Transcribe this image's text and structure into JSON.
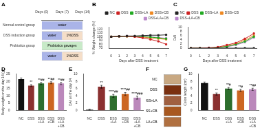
{
  "chart_data": [
    {
      "title": "A",
      "type": "timeline",
      "orientation": "horizontal",
      "stacked": true,
      "categories": [
        "Normal control group",
        "DSS induction group",
        "Probiotics group",
        null
      ],
      "series": [
        {
          "name": "water",
          "color": "#aab4e8",
          "values": [
            14,
            7,
            null,
            7
          ]
        },
        {
          "name": "1%DSS",
          "color": "#f5dec8",
          "values": [
            null,
            7,
            null,
            7
          ]
        },
        {
          "name": "Probiotics gavages",
          "color": "#c8eac8",
          "values": [
            null,
            null,
            14,
            null
          ]
        }
      ],
      "xlim": [
        0,
        14
      ],
      "xticks": [
        {
          "value": 0,
          "label": "Days (0)"
        },
        {
          "value": 7,
          "label": "Days (7)"
        },
        {
          "value": 14,
          "label": "Days (14)"
        }
      ],
      "grid": false
    },
    {
      "title": "B",
      "type": "line",
      "marker": "square",
      "x": [
        0,
        1,
        2,
        3,
        4,
        5,
        6,
        7
      ],
      "series": [
        {
          "name": "NC",
          "color": "#222222",
          "values": [
            100,
            101,
            102,
            102,
            103,
            104,
            104,
            105
          ]
        },
        {
          "name": "DSS",
          "color": "#cc2222",
          "values": [
            100,
            101,
            101,
            100,
            97,
            93,
            88,
            80
          ]
        },
        {
          "name": "DSS+LA",
          "color": "#22aa22",
          "values": [
            100,
            101,
            101,
            101,
            100,
            99,
            97,
            95
          ]
        },
        {
          "name": "DSS+CB",
          "color": "#ee8822",
          "values": [
            100,
            101,
            101,
            100,
            99,
            97,
            95,
            93
          ]
        },
        {
          "name": "DSS+LA+CB",
          "color": "#bb88cc",
          "values": [
            100,
            101,
            102,
            101,
            101,
            100,
            98,
            96
          ]
        }
      ],
      "xlabel": "Days after DSS treatment",
      "ylabel": "% Weight change (%)",
      "xlim": [
        -0.3,
        7.3
      ],
      "xticks": [
        0,
        1,
        2,
        3,
        4,
        5,
        6,
        7
      ],
      "ylim": [
        70,
        125
      ],
      "yticks": [
        70,
        80,
        90,
        100,
        110,
        120
      ],
      "legend": "upper right",
      "grid": false
    },
    {
      "title": "C",
      "type": "line",
      "marker": "square",
      "x": [
        0,
        1,
        2,
        3,
        4,
        5,
        6,
        7
      ],
      "series": [
        {
          "name": "NC",
          "color": "#222222",
          "values": [
            0,
            0,
            0,
            0,
            0,
            0,
            0,
            0
          ]
        },
        {
          "name": "DSS",
          "color": "#cc2222",
          "values": [
            0,
            0,
            0.2,
            0.5,
            1.5,
            2.5,
            4.5,
            7
          ]
        },
        {
          "name": "DSS+LA",
          "color": "#22aa22",
          "values": [
            0,
            0,
            0,
            0.3,
            0.8,
            1.8,
            3.2,
            5.5
          ]
        },
        {
          "name": "DSS+CB",
          "color": "#ee8822",
          "values": [
            0,
            0,
            0,
            0.3,
            1.0,
            2.0,
            3.8,
            6.0
          ]
        },
        {
          "name": "DSS+LA+CB",
          "color": "#bb88cc",
          "values": [
            0,
            0,
            0,
            0.2,
            0.6,
            1.5,
            2.8,
            5.0
          ]
        }
      ],
      "xlabel": "Days after DSS treatment",
      "ylabel": "DAI",
      "xlim": [
        -0.3,
        7.3
      ],
      "xticks": [
        0,
        1,
        2,
        3,
        4,
        5,
        6,
        7
      ],
      "ylim": [
        0,
        10
      ],
      "yticks": [
        0,
        2,
        4,
        6,
        8,
        10
      ],
      "legend": "upper left",
      "grid": false
    },
    {
      "title": "D",
      "type": "bar",
      "categories": [
        "NC",
        "DSS",
        "DSS\n+LA",
        "DSS\n+CB",
        "DSS\n+LA\n+CB"
      ],
      "values": [
        21.5,
        17.0,
        18.5,
        19.0,
        18.5
      ],
      "errors": [
        0.8,
        0.7,
        0.8,
        0.7,
        0.8
      ],
      "colors": [
        "#111111",
        "#8B3030",
        "#2d6e2d",
        "#cc6622",
        "#bb88bb"
      ],
      "annotations": [
        null,
        "**",
        "**##",
        "**##",
        "**##"
      ],
      "ylabel": "Body weight on the day 14 (g)",
      "ylim": [
        0,
        25
      ],
      "yticks": [
        0,
        5,
        10,
        15,
        20,
        25
      ],
      "grid": false
    },
    {
      "title": "E",
      "type": "bar",
      "categories": [
        "NC",
        "DSS",
        "DSS\n+LA",
        "DSS\n+CB",
        "DSS\n+LA\n+CB"
      ],
      "values": [
        0.2,
        6.5,
        4.0,
        4.5,
        3.5
      ],
      "errors": [
        0.1,
        0.4,
        0.4,
        0.4,
        0.4
      ],
      "colors": [
        "#111111",
        "#8B3030",
        "#2d6e2d",
        "#cc6622",
        "#bb88bb"
      ],
      "annotations": [
        null,
        "**",
        "****##",
        "****##",
        "****###"
      ],
      "ylabel": "DAI on the day 14",
      "ylim": [
        0,
        10
      ],
      "yticks": [
        0,
        2,
        4,
        6,
        8,
        10
      ],
      "grid": false
    },
    {
      "title": "F",
      "type": "swatch",
      "categories": [
        "NC",
        "DSS",
        "DSS+LA",
        "DSS+CB",
        "DSS+LA+CB"
      ],
      "colors": [
        "#c8a882",
        "#7a3010",
        "#a06040",
        "#a85820",
        "#b07040"
      ]
    },
    {
      "title": "G",
      "type": "bar",
      "categories": [
        "NC",
        "DSS",
        "DSS\n+LA",
        "DSS\n+CB",
        "DSS\n+LA\n+CB"
      ],
      "values": [
        7.5,
        4.5,
        6.0,
        5.5,
        5.8
      ],
      "errors": [
        0.3,
        0.3,
        0.3,
        0.3,
        0.3
      ],
      "colors": [
        "#111111",
        "#8B3030",
        "#2d6e2d",
        "#cc6622",
        "#bb88bb"
      ],
      "annotations": [
        null,
        "**",
        "**#",
        "**#",
        "**##"
      ],
      "ylabel": "Colon length (cm)",
      "ylim": [
        0,
        10
      ],
      "yticks": [
        0,
        2,
        4,
        6,
        8,
        10
      ],
      "grid": false
    }
  ]
}
